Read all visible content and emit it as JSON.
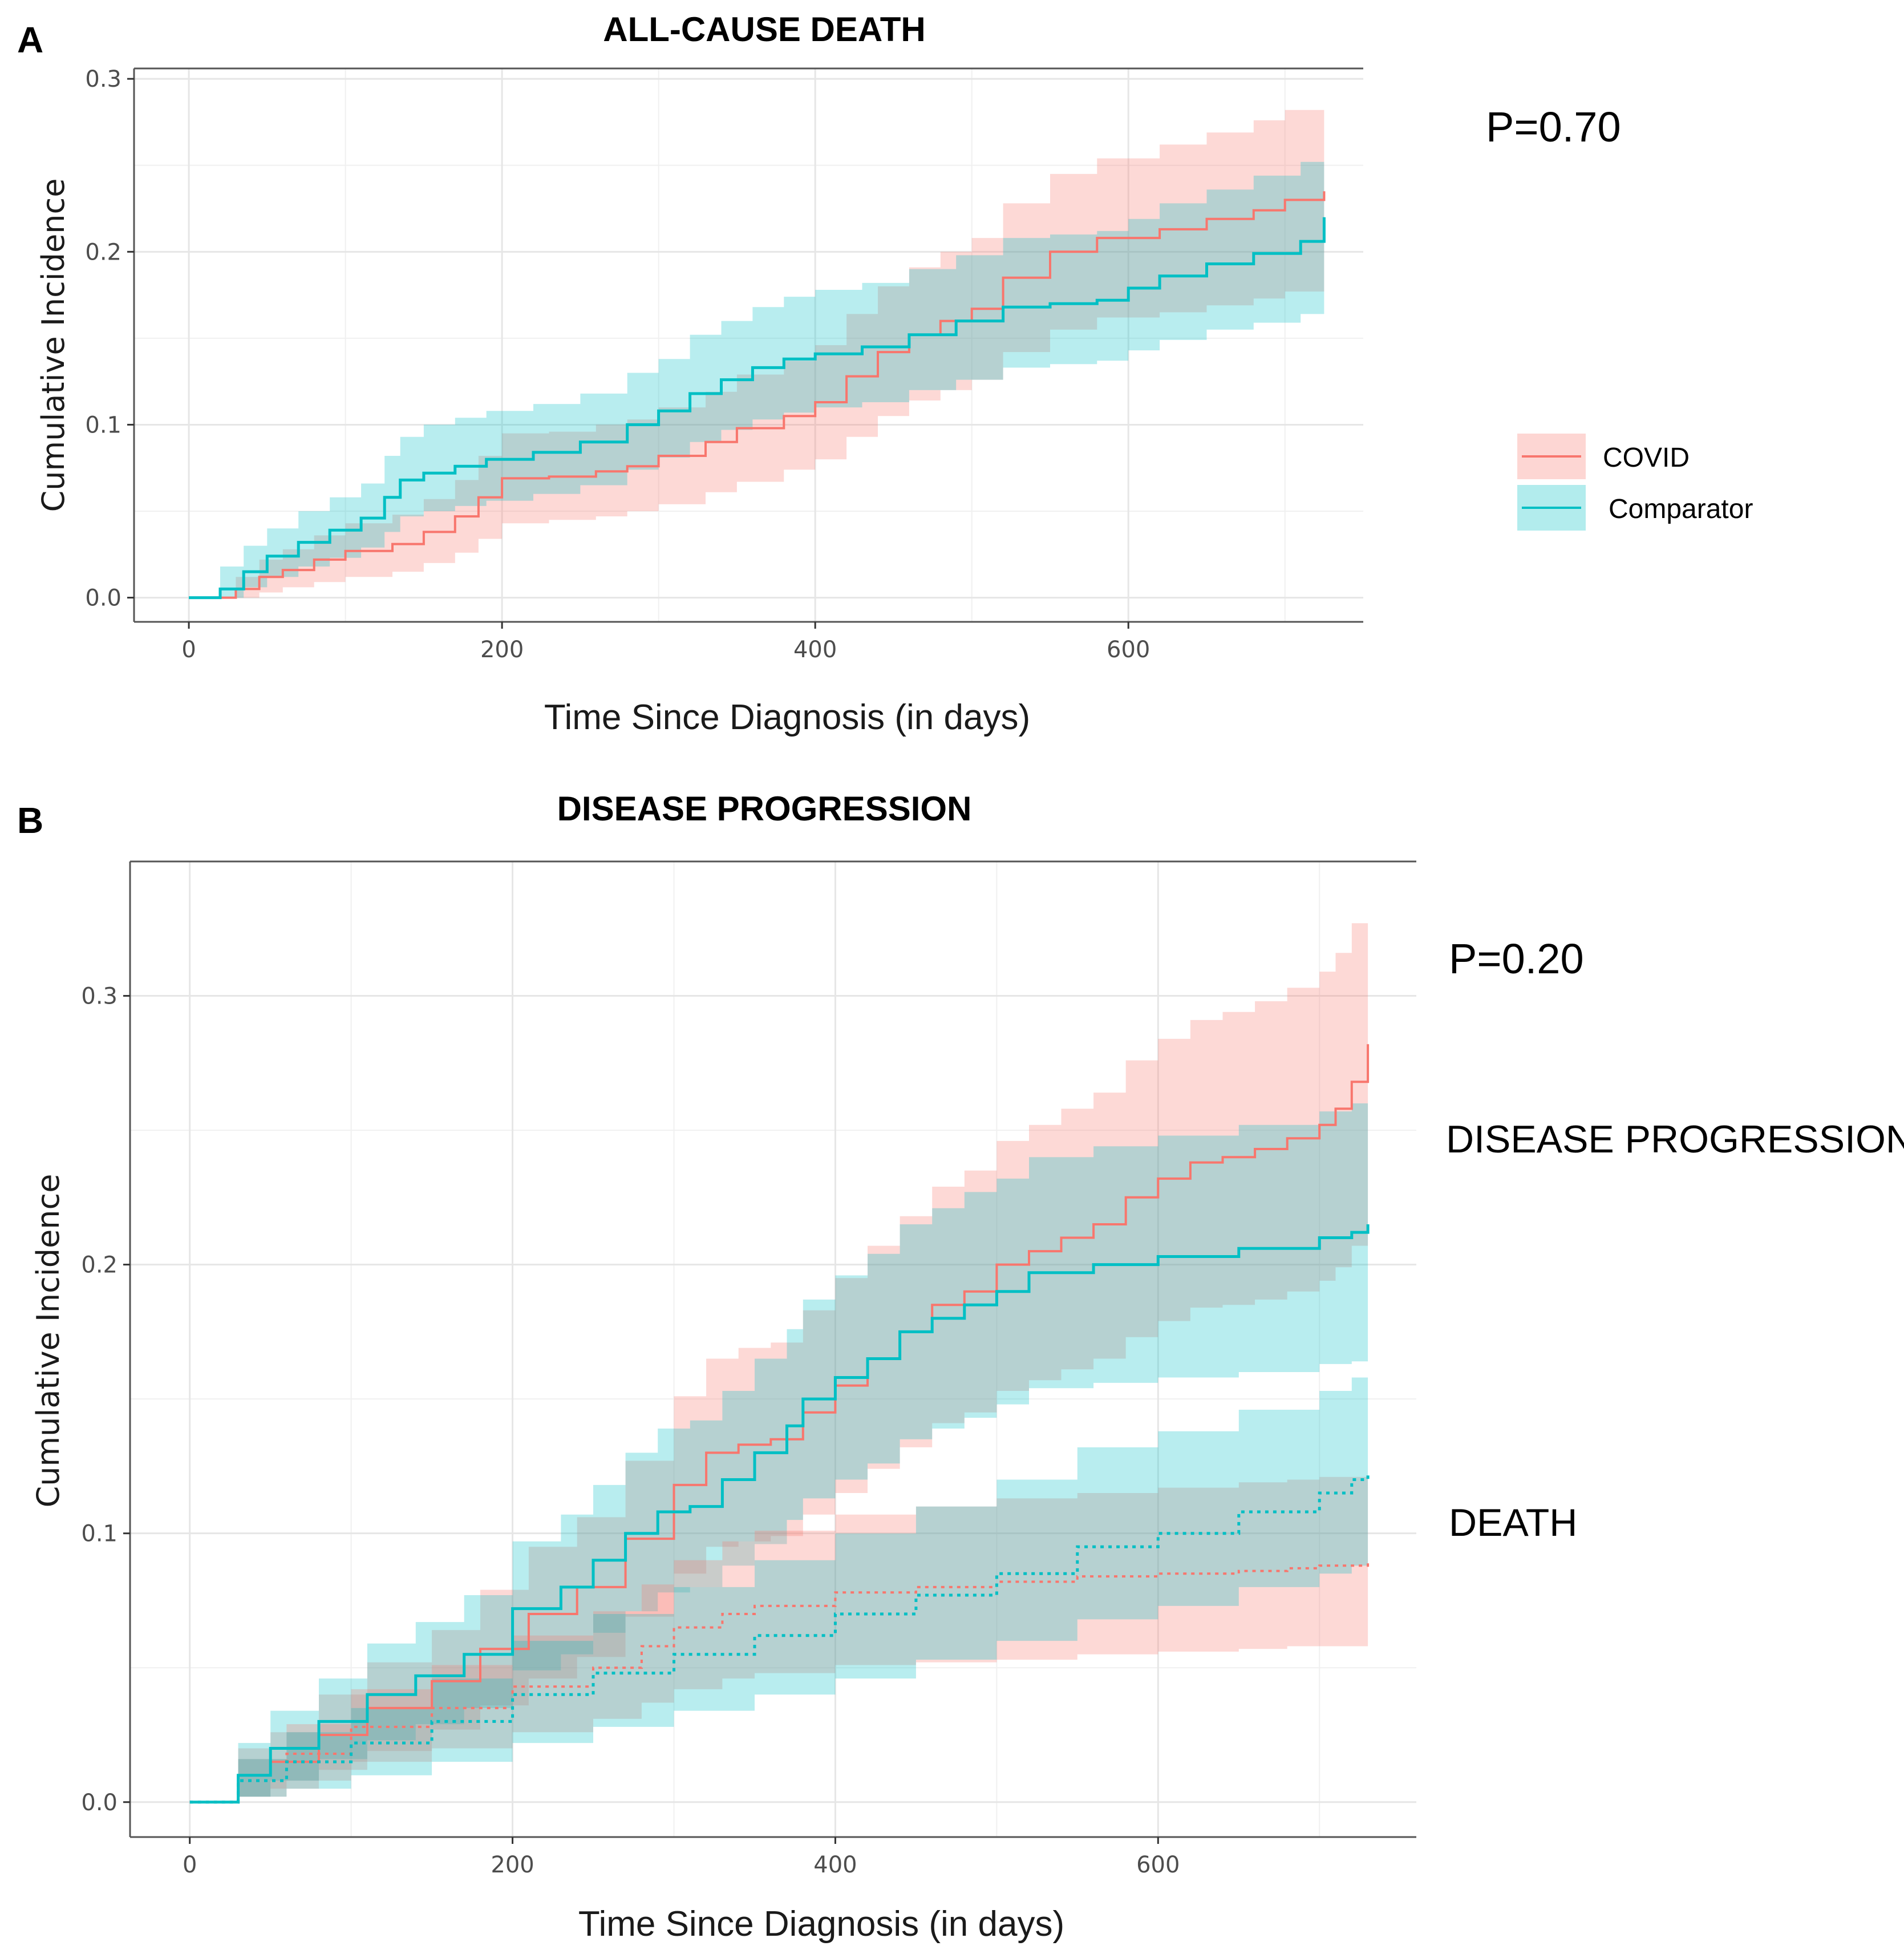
{
  "colors": {
    "covid": "#F8766D",
    "comparator": "#00BFC4"
  },
  "legend": {
    "items": [
      {
        "label": "COVID"
      },
      {
        "label": "Comparator"
      }
    ]
  },
  "chart_data": [
    {
      "panel": "A",
      "type": "line",
      "step": true,
      "title": "ALL-CAUSE DEATH",
      "xlabel": "Time Since Diagnosis (in days)",
      "ylabel": "Cumulative Incidence",
      "xlim": [
        -35,
        750
      ],
      "ylim": [
        -0.014,
        0.306
      ],
      "xticks": [
        0,
        200,
        400,
        600
      ],
      "xtick_labels": [
        "0",
        "200",
        "400",
        "600"
      ],
      "yticks": [
        0.0,
        0.1,
        0.2,
        0.3
      ],
      "ytick_labels": [
        "0.0",
        "0.1",
        "0.2",
        "0.3"
      ],
      "annotation": "P=0.70",
      "series": [
        {
          "name": "COVID",
          "linestyle": "solid",
          "x": [
            0,
            30,
            45,
            60,
            80,
            100,
            130,
            150,
            170,
            185,
            200,
            230,
            260,
            280,
            300,
            330,
            350,
            380,
            400,
            420,
            440,
            460,
            480,
            500,
            520,
            550,
            580,
            620,
            650,
            680,
            700,
            725
          ],
          "y": [
            0,
            0.005,
            0.012,
            0.016,
            0.022,
            0.027,
            0.031,
            0.038,
            0.047,
            0.058,
            0.069,
            0.07,
            0.073,
            0.076,
            0.082,
            0.09,
            0.098,
            0.105,
            0.113,
            0.128,
            0.142,
            0.152,
            0.16,
            0.167,
            0.185,
            0.2,
            0.208,
            0.213,
            0.219,
            0.224,
            0.23,
            0.235
          ],
          "lower": [
            0,
            0,
            0.003,
            0.006,
            0.009,
            0.012,
            0.015,
            0.02,
            0.026,
            0.034,
            0.043,
            0.045,
            0.047,
            0.05,
            0.054,
            0.061,
            0.067,
            0.074,
            0.08,
            0.093,
            0.105,
            0.114,
            0.12,
            0.126,
            0.142,
            0.155,
            0.162,
            0.165,
            0.169,
            0.173,
            0.177,
            0.18
          ],
          "upper": [
            0,
            0.012,
            0.022,
            0.028,
            0.036,
            0.043,
            0.048,
            0.057,
            0.068,
            0.082,
            0.095,
            0.096,
            0.1,
            0.103,
            0.11,
            0.119,
            0.129,
            0.137,
            0.146,
            0.164,
            0.18,
            0.191,
            0.2,
            0.208,
            0.228,
            0.245,
            0.254,
            0.262,
            0.269,
            0.276,
            0.282,
            0.288
          ]
        },
        {
          "name": "Comparator",
          "linestyle": "solid",
          "x": [
            0,
            20,
            35,
            50,
            70,
            90,
            110,
            125,
            135,
            150,
            170,
            190,
            220,
            250,
            280,
            300,
            320,
            340,
            360,
            380,
            400,
            430,
            460,
            490,
            520,
            550,
            580,
            600,
            620,
            650,
            680,
            710,
            725
          ],
          "y": [
            0,
            0.005,
            0.015,
            0.024,
            0.032,
            0.039,
            0.046,
            0.058,
            0.068,
            0.072,
            0.076,
            0.08,
            0.084,
            0.09,
            0.1,
            0.108,
            0.118,
            0.126,
            0.133,
            0.138,
            0.141,
            0.145,
            0.152,
            0.16,
            0.168,
            0.17,
            0.172,
            0.179,
            0.186,
            0.193,
            0.199,
            0.206,
            0.22
          ],
          "lower": [
            0,
            0,
            0.006,
            0.012,
            0.018,
            0.023,
            0.029,
            0.038,
            0.047,
            0.05,
            0.053,
            0.056,
            0.06,
            0.065,
            0.074,
            0.081,
            0.09,
            0.097,
            0.103,
            0.107,
            0.11,
            0.113,
            0.12,
            0.126,
            0.133,
            0.135,
            0.137,
            0.143,
            0.149,
            0.155,
            0.159,
            0.164,
            0.165
          ],
          "upper": [
            0,
            0.018,
            0.03,
            0.04,
            0.05,
            0.058,
            0.066,
            0.082,
            0.093,
            0.1,
            0.104,
            0.108,
            0.112,
            0.118,
            0.13,
            0.138,
            0.152,
            0.16,
            0.168,
            0.174,
            0.178,
            0.182,
            0.19,
            0.198,
            0.208,
            0.21,
            0.212,
            0.219,
            0.228,
            0.236,
            0.244,
            0.252,
            0.268
          ]
        }
      ]
    },
    {
      "panel": "B",
      "type": "line",
      "step": true,
      "title": "DISEASE PROGRESSION",
      "xlabel": "Time Since Diagnosis (in days)",
      "ylabel": "Cumulative Incidence",
      "xlim": [
        -37,
        760
      ],
      "ylim": [
        -0.013,
        0.35
      ],
      "xticks": [
        0,
        200,
        400,
        600
      ],
      "xtick_labels": [
        "0",
        "200",
        "400",
        "600"
      ],
      "yticks": [
        0.0,
        0.1,
        0.2,
        0.3
      ],
      "ytick_labels": [
        "0.0",
        "0.1",
        "0.2",
        "0.3"
      ],
      "annotation": "P=0.20",
      "curve_labels": [
        "DISEASE PROGRESSION",
        "DEATH"
      ],
      "series": [
        {
          "name": "COVID",
          "event": "DISEASE PROGRESSION",
          "linestyle": "solid",
          "x": [
            0,
            30,
            50,
            80,
            110,
            150,
            180,
            210,
            240,
            270,
            300,
            320,
            340,
            360,
            380,
            400,
            420,
            440,
            460,
            480,
            500,
            520,
            540,
            560,
            580,
            600,
            620,
            640,
            660,
            680,
            700,
            710,
            720,
            730
          ],
          "y": [
            0,
            0.01,
            0.015,
            0.025,
            0.035,
            0.045,
            0.057,
            0.07,
            0.08,
            0.098,
            0.118,
            0.13,
            0.133,
            0.135,
            0.145,
            0.155,
            0.165,
            0.175,
            0.185,
            0.19,
            0.2,
            0.205,
            0.21,
            0.215,
            0.225,
            0.232,
            0.238,
            0.24,
            0.243,
            0.247,
            0.252,
            0.258,
            0.268,
            0.282
          ],
          "lower": [
            0,
            0.002,
            0.005,
            0.012,
            0.019,
            0.027,
            0.036,
            0.046,
            0.054,
            0.069,
            0.085,
            0.095,
            0.097,
            0.099,
            0.107,
            0.115,
            0.124,
            0.132,
            0.141,
            0.145,
            0.153,
            0.157,
            0.161,
            0.165,
            0.173,
            0.179,
            0.184,
            0.185,
            0.187,
            0.19,
            0.194,
            0.199,
            0.207,
            0.218
          ],
          "upper": [
            0,
            0.02,
            0.026,
            0.04,
            0.052,
            0.064,
            0.079,
            0.095,
            0.106,
            0.127,
            0.151,
            0.165,
            0.169,
            0.171,
            0.183,
            0.195,
            0.207,
            0.218,
            0.229,
            0.235,
            0.246,
            0.252,
            0.258,
            0.264,
            0.276,
            0.284,
            0.291,
            0.294,
            0.298,
            0.303,
            0.309,
            0.316,
            0.327,
            0.335
          ]
        },
        {
          "name": "Comparator",
          "event": "DISEASE PROGRESSION",
          "linestyle": "solid",
          "x": [
            0,
            30,
            50,
            80,
            110,
            140,
            170,
            200,
            230,
            250,
            270,
            290,
            310,
            330,
            350,
            370,
            380,
            400,
            420,
            440,
            460,
            480,
            500,
            520,
            560,
            600,
            650,
            700,
            720,
            730
          ],
          "y": [
            0,
            0.01,
            0.02,
            0.03,
            0.04,
            0.047,
            0.055,
            0.072,
            0.08,
            0.09,
            0.1,
            0.108,
            0.11,
            0.12,
            0.13,
            0.14,
            0.15,
            0.158,
            0.165,
            0.175,
            0.18,
            0.185,
            0.19,
            0.197,
            0.2,
            0.203,
            0.206,
            0.21,
            0.212,
            0.215
          ],
          "lower": [
            0,
            0.002,
            0.008,
            0.016,
            0.023,
            0.029,
            0.035,
            0.049,
            0.055,
            0.063,
            0.071,
            0.078,
            0.08,
            0.088,
            0.096,
            0.105,
            0.113,
            0.12,
            0.126,
            0.135,
            0.139,
            0.143,
            0.148,
            0.154,
            0.156,
            0.158,
            0.16,
            0.163,
            0.164,
            0.166
          ],
          "upper": [
            0,
            0.022,
            0.034,
            0.046,
            0.059,
            0.067,
            0.077,
            0.097,
            0.107,
            0.118,
            0.13,
            0.139,
            0.142,
            0.153,
            0.165,
            0.176,
            0.187,
            0.196,
            0.204,
            0.215,
            0.221,
            0.227,
            0.232,
            0.24,
            0.244,
            0.248,
            0.252,
            0.257,
            0.26,
            0.264
          ]
        },
        {
          "name": "COVID",
          "event": "DEATH",
          "linestyle": "dotted",
          "x": [
            0,
            30,
            60,
            100,
            150,
            200,
            250,
            280,
            300,
            330,
            350,
            400,
            450,
            500,
            550,
            600,
            650,
            680,
            700,
            730
          ],
          "y": [
            0,
            0.008,
            0.018,
            0.028,
            0.035,
            0.043,
            0.05,
            0.058,
            0.065,
            0.07,
            0.073,
            0.078,
            0.08,
            0.082,
            0.084,
            0.085,
            0.086,
            0.087,
            0.088,
            0.089
          ],
          "lower": [
            0,
            0.002,
            0.008,
            0.015,
            0.02,
            0.026,
            0.031,
            0.037,
            0.042,
            0.046,
            0.048,
            0.051,
            0.052,
            0.053,
            0.055,
            0.056,
            0.057,
            0.058,
            0.058,
            0.059
          ],
          "upper": [
            0,
            0.016,
            0.029,
            0.042,
            0.051,
            0.062,
            0.071,
            0.081,
            0.09,
            0.097,
            0.101,
            0.107,
            0.11,
            0.113,
            0.115,
            0.117,
            0.119,
            0.12,
            0.121,
            0.122
          ]
        },
        {
          "name": "Comparator",
          "event": "DEATH",
          "linestyle": "dotted",
          "x": [
            0,
            30,
            60,
            100,
            150,
            200,
            250,
            300,
            350,
            400,
            450,
            500,
            550,
            600,
            650,
            700,
            720,
            730
          ],
          "y": [
            0,
            0.008,
            0.015,
            0.022,
            0.03,
            0.04,
            0.048,
            0.055,
            0.062,
            0.07,
            0.077,
            0.085,
            0.095,
            0.1,
            0.108,
            0.115,
            0.12,
            0.122
          ],
          "lower": [
            0,
            0.002,
            0.005,
            0.01,
            0.015,
            0.022,
            0.028,
            0.034,
            0.04,
            0.046,
            0.053,
            0.06,
            0.068,
            0.073,
            0.08,
            0.085,
            0.088,
            0.09
          ],
          "upper": [
            0,
            0.016,
            0.026,
            0.035,
            0.046,
            0.06,
            0.07,
            0.08,
            0.09,
            0.1,
            0.11,
            0.12,
            0.132,
            0.138,
            0.146,
            0.153,
            0.158,
            0.16
          ]
        }
      ]
    }
  ]
}
